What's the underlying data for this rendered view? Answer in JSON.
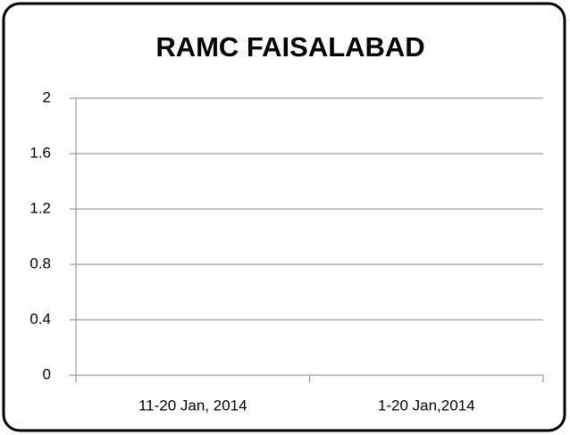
{
  "chart_data": {
    "type": "bar",
    "title": "RAMC FAISALABAD",
    "categories": [
      "11-20 Jan, 2014",
      "1-20 Jan,2014"
    ],
    "values": [
      0,
      0
    ],
    "color": "#4472c4",
    "ylim": [
      0,
      2
    ],
    "yticks": [
      0,
      0.4,
      0.8,
      1.2,
      1.6,
      2
    ],
    "grid": true
  }
}
